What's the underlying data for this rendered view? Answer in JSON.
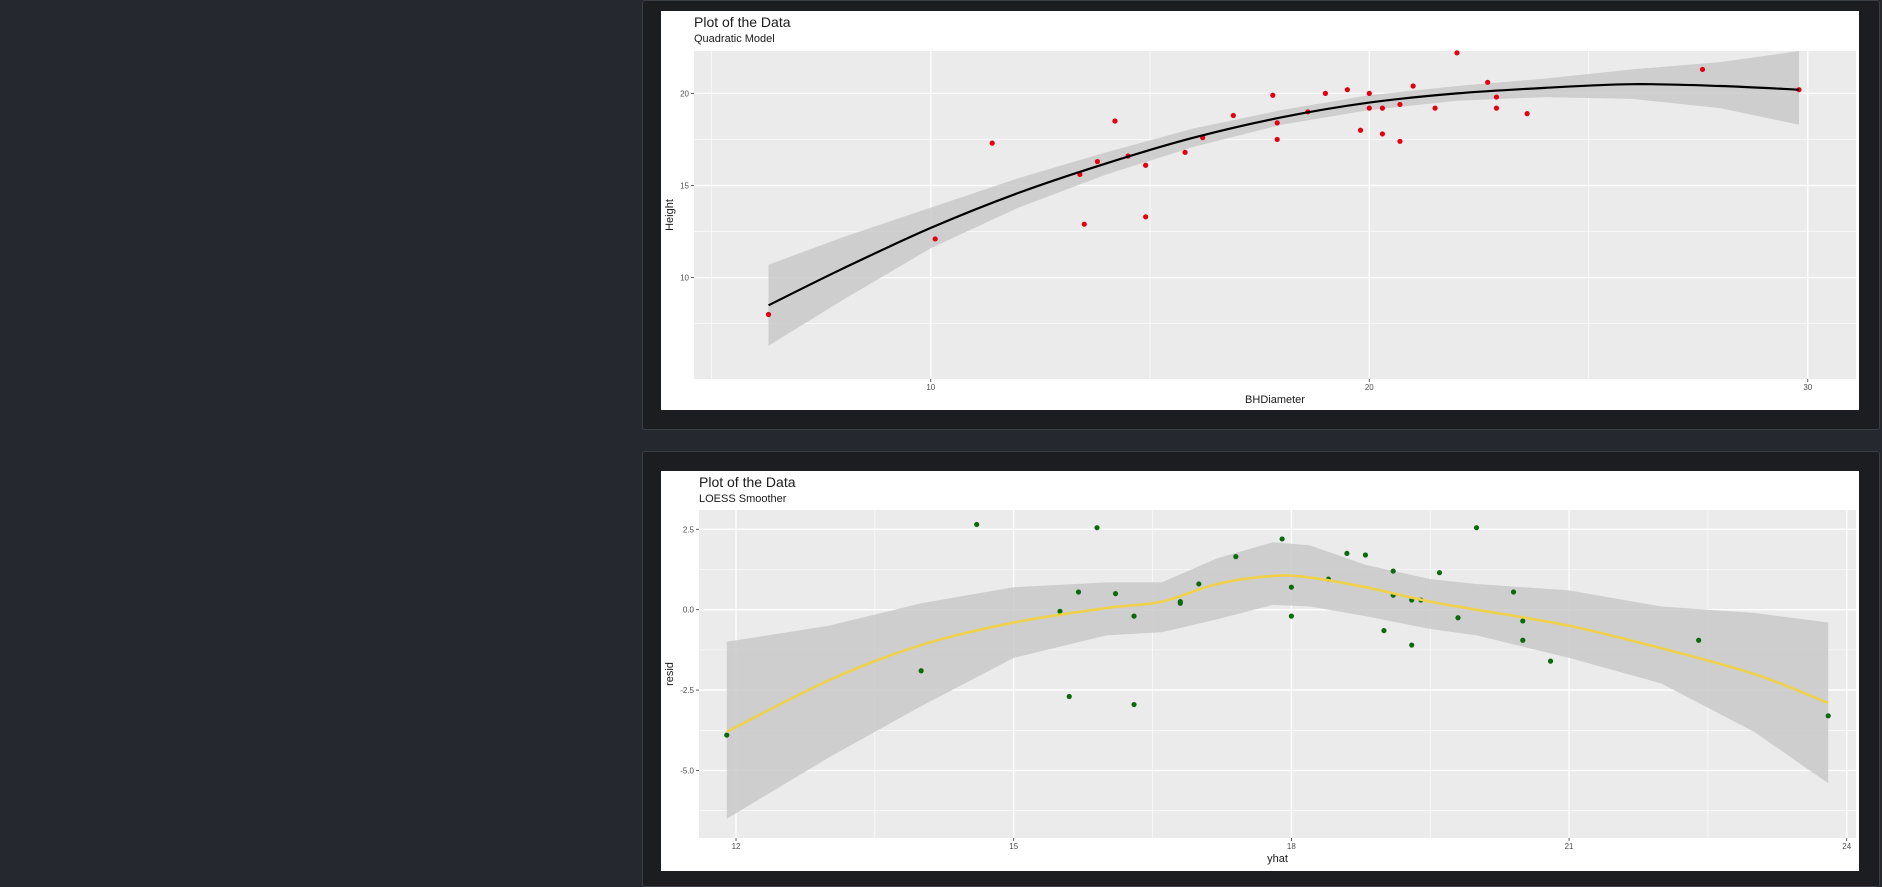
{
  "colors": {
    "page_bg": "#25282e",
    "card_bg": "#1b1d21",
    "panel_bg": "#ebebeb",
    "grid": "#ffffff",
    "band": "#c9c9c9",
    "plot1_points": "#e3000f",
    "plot1_line": "#000000",
    "plot2_points": "#0b6b0b",
    "plot2_line": "#f0d24a"
  },
  "chart_data": [
    {
      "type": "scatter",
      "title": "Plot of the Data",
      "subtitle": "Quadratic Model",
      "xlabel": "BHDiameter",
      "ylabel": "Height",
      "xlim": [
        4.6,
        31.1
      ],
      "ylim": [
        4.5,
        22.3
      ],
      "xticks": [
        10,
        20,
        30
      ],
      "xtick_labels": [
        "10",
        "20",
        "30"
      ],
      "yticks": [
        10,
        15,
        20
      ],
      "ytick_labels": [
        "10",
        "15",
        "20"
      ],
      "grid": true,
      "legend": "none",
      "points": [
        [
          6.3,
          8.0
        ],
        [
          10.1,
          12.1
        ],
        [
          11.4,
          17.3
        ],
        [
          13.5,
          12.9
        ],
        [
          13.4,
          15.6
        ],
        [
          13.8,
          16.3
        ],
        [
          14.2,
          18.5
        ],
        [
          14.5,
          16.6
        ],
        [
          14.9,
          16.1
        ],
        [
          14.9,
          13.3
        ],
        [
          15.8,
          16.8
        ],
        [
          16.2,
          17.6
        ],
        [
          16.9,
          18.8
        ],
        [
          17.8,
          19.9
        ],
        [
          17.9,
          18.4
        ],
        [
          17.9,
          17.5
        ],
        [
          18.6,
          19.0
        ],
        [
          19.0,
          20.0
        ],
        [
          19.5,
          20.2
        ],
        [
          19.8,
          18.0
        ],
        [
          20.0,
          20.0
        ],
        [
          20.0,
          19.2
        ],
        [
          20.3,
          19.2
        ],
        [
          20.3,
          17.8
        ],
        [
          20.7,
          19.4
        ],
        [
          20.7,
          17.4
        ],
        [
          21.0,
          20.4
        ],
        [
          21.5,
          19.2
        ],
        [
          22.0,
          22.2
        ],
        [
          22.7,
          20.6
        ],
        [
          22.9,
          19.8
        ],
        [
          22.9,
          19.2
        ],
        [
          23.6,
          18.9
        ],
        [
          27.6,
          21.3
        ],
        [
          29.8,
          20.2
        ]
      ],
      "fit_line": [
        [
          6.3,
          8.5
        ],
        [
          8.0,
          10.5
        ],
        [
          10.0,
          12.7
        ],
        [
          12.0,
          14.6
        ],
        [
          14.0,
          16.2
        ],
        [
          16.0,
          17.6
        ],
        [
          18.0,
          18.7
        ],
        [
          20.0,
          19.5
        ],
        [
          22.0,
          20.0
        ],
        [
          24.0,
          20.3
        ],
        [
          26.0,
          20.5
        ],
        [
          28.0,
          20.4
        ],
        [
          29.8,
          20.2
        ]
      ],
      "confidence_band": {
        "x": [
          6.3,
          8.0,
          10.0,
          12.0,
          14.0,
          16.0,
          18.0,
          20.0,
          22.0,
          24.0,
          26.0,
          28.0,
          29.8
        ],
        "lower": [
          6.3,
          8.8,
          11.6,
          13.8,
          15.6,
          17.1,
          18.3,
          19.1,
          19.6,
          19.8,
          19.7,
          19.2,
          18.3
        ],
        "upper": [
          10.7,
          12.2,
          13.8,
          15.4,
          16.8,
          18.1,
          19.1,
          19.9,
          20.4,
          20.8,
          21.3,
          21.7,
          22.3
        ]
      }
    },
    {
      "type": "scatter",
      "title": "Plot of the Data",
      "subtitle": "LOESS Smoother",
      "xlabel": "yhat",
      "ylabel": "resid",
      "xlim": [
        11.6,
        24.1
      ],
      "ylim": [
        -7.1,
        3.1
      ],
      "xticks": [
        12,
        15,
        18,
        21,
        24
      ],
      "xtick_labels": [
        "12",
        "15",
        "18",
        "21",
        "24"
      ],
      "yticks": [
        -5,
        -2.5,
        0,
        2.5
      ],
      "ytick_labels": [
        "-5.0",
        "-2.5",
        "0.0",
        "2.5"
      ],
      "grid": true,
      "legend": "none",
      "points": [
        [
          11.9,
          -3.9
        ],
        [
          14.0,
          -1.9
        ],
        [
          14.6,
          2.65
        ],
        [
          15.5,
          -0.05
        ],
        [
          15.6,
          -2.7
        ],
        [
          15.7,
          0.55
        ],
        [
          15.9,
          2.55
        ],
        [
          16.1,
          0.5
        ],
        [
          16.3,
          -0.2
        ],
        [
          16.3,
          -2.95
        ],
        [
          16.8,
          0.2
        ],
        [
          16.8,
          0.25
        ],
        [
          17.0,
          0.8
        ],
        [
          17.4,
          1.65
        ],
        [
          17.9,
          2.2
        ],
        [
          18.0,
          0.7
        ],
        [
          18.0,
          -0.2
        ],
        [
          18.4,
          0.95
        ],
        [
          18.6,
          1.75
        ],
        [
          18.8,
          1.7
        ],
        [
          19.0,
          -0.65
        ],
        [
          19.1,
          1.2
        ],
        [
          19.1,
          0.45
        ],
        [
          19.3,
          0.3
        ],
        [
          19.3,
          -1.1
        ],
        [
          19.4,
          0.3
        ],
        [
          19.6,
          1.15
        ],
        [
          19.8,
          -0.25
        ],
        [
          20.0,
          2.55
        ],
        [
          20.4,
          0.55
        ],
        [
          20.5,
          -0.35
        ],
        [
          20.5,
          -0.95
        ],
        [
          20.8,
          -1.6
        ],
        [
          22.4,
          -0.95
        ],
        [
          23.8,
          -3.3
        ]
      ],
      "fit_line": [
        [
          11.9,
          -3.8
        ],
        [
          13.0,
          -2.2
        ],
        [
          14.0,
          -1.1
        ],
        [
          15.0,
          -0.4
        ],
        [
          16.0,
          0.05
        ],
        [
          16.6,
          0.25
        ],
        [
          17.2,
          0.8
        ],
        [
          17.8,
          1.05
        ],
        [
          18.2,
          1.0
        ],
        [
          18.8,
          0.7
        ],
        [
          19.5,
          0.25
        ],
        [
          20.0,
          0.0
        ],
        [
          21.0,
          -0.5
        ],
        [
          22.0,
          -1.2
        ],
        [
          23.0,
          -2.0
        ],
        [
          23.8,
          -2.9
        ]
      ],
      "confidence_band": {
        "x": [
          11.9,
          13.0,
          14.0,
          15.0,
          16.0,
          16.6,
          17.2,
          17.8,
          18.2,
          18.8,
          19.5,
          20.0,
          21.0,
          22.0,
          23.0,
          23.8
        ],
        "lower": [
          -6.5,
          -4.6,
          -3.0,
          -1.5,
          -0.8,
          -0.7,
          -0.3,
          0.15,
          0.1,
          -0.2,
          -0.6,
          -0.8,
          -1.5,
          -2.3,
          -3.8,
          -5.4
        ],
        "upper": [
          -1.0,
          -0.5,
          0.2,
          0.7,
          0.85,
          0.85,
          1.6,
          2.1,
          2.0,
          1.4,
          0.95,
          0.8,
          0.6,
          0.1,
          -0.1,
          -0.4
        ]
      }
    }
  ]
}
